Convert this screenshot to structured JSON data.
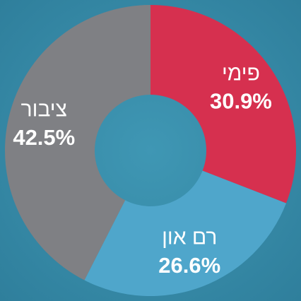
{
  "chart_data": {
    "type": "donut",
    "categories": [
      "פימי",
      "רם און",
      "ציבור"
    ],
    "values": [
      30.9,
      26.6,
      42.5
    ],
    "value_labels": [
      "30.9%",
      "26.6%",
      "42.5%"
    ],
    "colors": [
      "#d6304f",
      "#4fa6cb",
      "#7f8084"
    ]
  }
}
